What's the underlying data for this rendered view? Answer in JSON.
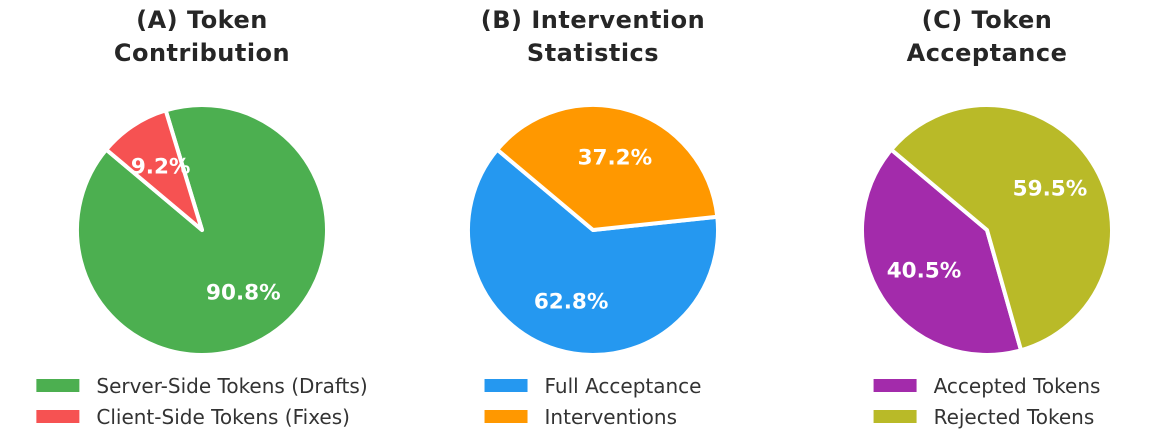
{
  "page": {
    "background": "#FFFFFF",
    "text_color": "#262626"
  },
  "chart_data": [
    {
      "type": "pie",
      "title": "(A) Token Contribution",
      "title_lines": [
        "(A) Token",
        "Contribution"
      ],
      "start_angle_deg": 140,
      "direction": "counterclockwise",
      "pct_label_color": "#FFFFFF",
      "slices": [
        {
          "label": "Server-Side Tokens (Drafts)",
          "value_pct": 90.8,
          "pct_label": "90.8%",
          "color": "#4CAF50"
        },
        {
          "label": "Client-Side Tokens (Fixes)",
          "value_pct": 9.2,
          "pct_label": "9.2%",
          "color": "#F65252"
        }
      ]
    },
    {
      "type": "pie",
      "title": "(B) Intervention Statistics",
      "title_lines": [
        "(B) Intervention",
        "Statistics"
      ],
      "start_angle_deg": 140,
      "direction": "counterclockwise",
      "pct_label_color": "#FFFFFF",
      "slices": [
        {
          "label": "Full Acceptance",
          "value_pct": 62.8,
          "pct_label": "62.8%",
          "color": "#2598F0"
        },
        {
          "label": "Interventions",
          "value_pct": 37.2,
          "pct_label": "37.2%",
          "color": "#FF9800"
        }
      ]
    },
    {
      "type": "pie",
      "title": "(C) Token Acceptance",
      "title_lines": [
        "(C) Token",
        "Acceptance"
      ],
      "start_angle_deg": 140,
      "direction": "counterclockwise",
      "pct_label_color": "#FFFFFF",
      "slices": [
        {
          "label": "Accepted Tokens",
          "value_pct": 40.5,
          "pct_label": "40.5%",
          "color": "#A32BAB"
        },
        {
          "label": "Rejected Tokens",
          "value_pct": 59.5,
          "pct_label": "59.5%",
          "color": "#B9BA28"
        }
      ]
    }
  ]
}
